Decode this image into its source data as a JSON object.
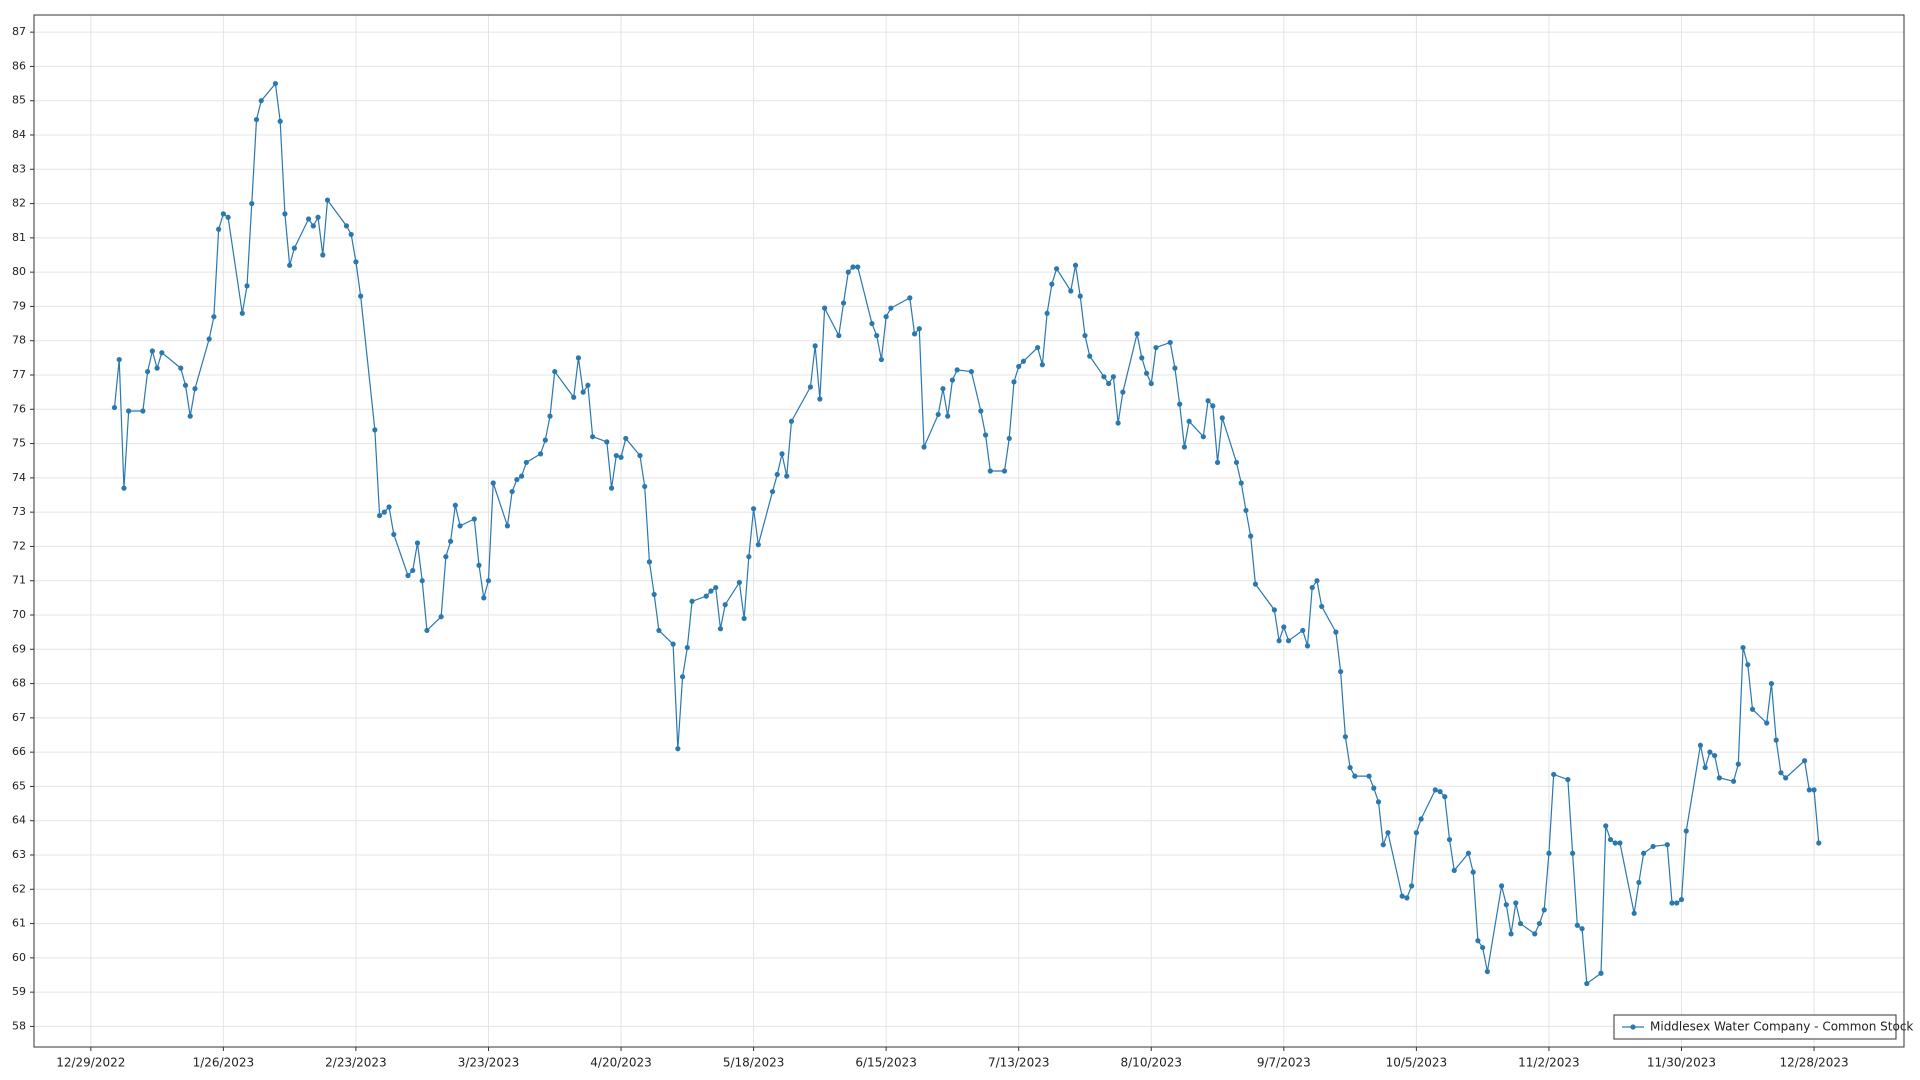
{
  "chart_data": {
    "type": "line",
    "legend": "bottom-right",
    "grid": true,
    "series": [
      {
        "name": "Middlesex Water Company - Common Stock",
        "color": "#2a78b0",
        "x": [
          "2023-01-03",
          "2023-01-04",
          "2023-01-05",
          "2023-01-06",
          "2023-01-09",
          "2023-01-10",
          "2023-01-11",
          "2023-01-12",
          "2023-01-13",
          "2023-01-17",
          "2023-01-18",
          "2023-01-19",
          "2023-01-20",
          "2023-01-23",
          "2023-01-24",
          "2023-01-25",
          "2023-01-26",
          "2023-01-27",
          "2023-01-30",
          "2023-01-31",
          "2023-02-01",
          "2023-02-02",
          "2023-02-03",
          "2023-02-06",
          "2023-02-07",
          "2023-02-08",
          "2023-02-09",
          "2023-02-10",
          "2023-02-13",
          "2023-02-14",
          "2023-02-15",
          "2023-02-16",
          "2023-02-17",
          "2023-02-21",
          "2023-02-22",
          "2023-02-23",
          "2023-02-24",
          "2023-02-27",
          "2023-02-28",
          "2023-03-01",
          "2023-03-02",
          "2023-03-03",
          "2023-03-06",
          "2023-03-07",
          "2023-03-08",
          "2023-03-09",
          "2023-03-10",
          "2023-03-13",
          "2023-03-14",
          "2023-03-15",
          "2023-03-16",
          "2023-03-17",
          "2023-03-20",
          "2023-03-21",
          "2023-03-22",
          "2023-03-23",
          "2023-03-24",
          "2023-03-27",
          "2023-03-28",
          "2023-03-29",
          "2023-03-30",
          "2023-03-31",
          "2023-04-03",
          "2023-04-04",
          "2023-04-05",
          "2023-04-06",
          "2023-04-10",
          "2023-04-11",
          "2023-04-12",
          "2023-04-13",
          "2023-04-14",
          "2023-04-17",
          "2023-04-18",
          "2023-04-19",
          "2023-04-20",
          "2023-04-21",
          "2023-04-24",
          "2023-04-25",
          "2023-04-26",
          "2023-04-27",
          "2023-04-28",
          "2023-05-01",
          "2023-05-02",
          "2023-05-03",
          "2023-05-04",
          "2023-05-05",
          "2023-05-08",
          "2023-05-09",
          "2023-05-10",
          "2023-05-11",
          "2023-05-12",
          "2023-05-15",
          "2023-05-16",
          "2023-05-17",
          "2023-05-18",
          "2023-05-19",
          "2023-05-22",
          "2023-05-23",
          "2023-05-24",
          "2023-05-25",
          "2023-05-26",
          "2023-05-30",
          "2023-05-31",
          "2023-06-01",
          "2023-06-02",
          "2023-06-05",
          "2023-06-06",
          "2023-06-07",
          "2023-06-08",
          "2023-06-09",
          "2023-06-12",
          "2023-06-13",
          "2023-06-14",
          "2023-06-15",
          "2023-06-16",
          "2023-06-20",
          "2023-06-21",
          "2023-06-22",
          "2023-06-23",
          "2023-06-26",
          "2023-06-27",
          "2023-06-28",
          "2023-06-29",
          "2023-06-30",
          "2023-07-03",
          "2023-07-05",
          "2023-07-06",
          "2023-07-07",
          "2023-07-10",
          "2023-07-11",
          "2023-07-12",
          "2023-07-13",
          "2023-07-14",
          "2023-07-17",
          "2023-07-18",
          "2023-07-19",
          "2023-07-20",
          "2023-07-21",
          "2023-07-24",
          "2023-07-25",
          "2023-07-26",
          "2023-07-27",
          "2023-07-28",
          "2023-07-31",
          "2023-08-01",
          "2023-08-02",
          "2023-08-03",
          "2023-08-04",
          "2023-08-07",
          "2023-08-08",
          "2023-08-09",
          "2023-08-10",
          "2023-08-11",
          "2023-08-14",
          "2023-08-15",
          "2023-08-16",
          "2023-08-17",
          "2023-08-18",
          "2023-08-21",
          "2023-08-22",
          "2023-08-23",
          "2023-08-24",
          "2023-08-25",
          "2023-08-28",
          "2023-08-29",
          "2023-08-30",
          "2023-08-31",
          "2023-09-01",
          "2023-09-05",
          "2023-09-06",
          "2023-09-07",
          "2023-09-08",
          "2023-09-11",
          "2023-09-12",
          "2023-09-13",
          "2023-09-14",
          "2023-09-15",
          "2023-09-18",
          "2023-09-19",
          "2023-09-20",
          "2023-09-21",
          "2023-09-22",
          "2023-09-25",
          "2023-09-26",
          "2023-09-27",
          "2023-09-28",
          "2023-09-29",
          "2023-10-02",
          "2023-10-03",
          "2023-10-04",
          "2023-10-05",
          "2023-10-06",
          "2023-10-09",
          "2023-10-10",
          "2023-10-11",
          "2023-10-12",
          "2023-10-13",
          "2023-10-16",
          "2023-10-17",
          "2023-10-18",
          "2023-10-19",
          "2023-10-20",
          "2023-10-23",
          "2023-10-24",
          "2023-10-25",
          "2023-10-26",
          "2023-10-27",
          "2023-10-30",
          "2023-10-31",
          "2023-11-01",
          "2023-11-02",
          "2023-11-03",
          "2023-11-06",
          "2023-11-07",
          "2023-11-08",
          "2023-11-09",
          "2023-11-10",
          "2023-11-13",
          "2023-11-14",
          "2023-11-15",
          "2023-11-16",
          "2023-11-17",
          "2023-11-20",
          "2023-11-21",
          "2023-11-22",
          "2023-11-24",
          "2023-11-27",
          "2023-11-28",
          "2023-11-29",
          "2023-11-30",
          "2023-12-01",
          "2023-12-04",
          "2023-12-05",
          "2023-12-06",
          "2023-12-07",
          "2023-12-08",
          "2023-12-11",
          "2023-12-12",
          "2023-12-13",
          "2023-12-14",
          "2023-12-15",
          "2023-12-18",
          "2023-12-19",
          "2023-12-20",
          "2023-12-21",
          "2023-12-22",
          "2023-12-26",
          "2023-12-27",
          "2023-12-28",
          "2023-12-29"
        ],
        "values": [
          76.05,
          77.45,
          73.7,
          75.95,
          75.95,
          77.1,
          77.7,
          77.2,
          77.65,
          77.2,
          76.7,
          75.8,
          76.6,
          78.05,
          78.7,
          81.25,
          81.7,
          81.6,
          78.8,
          79.6,
          82.0,
          84.45,
          85.0,
          85.5,
          84.4,
          81.7,
          80.2,
          80.7,
          81.55,
          81.35,
          81.6,
          80.5,
          82.1,
          81.35,
          81.1,
          80.3,
          79.3,
          75.4,
          72.9,
          73.0,
          73.15,
          72.35,
          71.15,
          71.3,
          72.1,
          71.0,
          69.55,
          69.95,
          71.7,
          72.15,
          73.2,
          72.6,
          72.8,
          71.45,
          70.5,
          71.0,
          73.85,
          72.6,
          73.6,
          73.95,
          74.05,
          74.45,
          74.7,
          75.1,
          75.8,
          77.1,
          76.35,
          77.5,
          76.5,
          76.7,
          75.2,
          75.05,
          73.7,
          74.65,
          74.6,
          75.15,
          74.65,
          73.75,
          71.55,
          70.6,
          69.55,
          69.15,
          66.1,
          68.2,
          69.05,
          70.4,
          70.55,
          70.7,
          70.8,
          69.6,
          70.3,
          70.95,
          69.9,
          71.7,
          73.1,
          72.05,
          73.6,
          74.1,
          74.7,
          74.05,
          75.65,
          76.65,
          77.85,
          76.3,
          78.95,
          78.15,
          79.1,
          80.0,
          80.15,
          80.15,
          78.5,
          78.15,
          77.45,
          78.7,
          78.95,
          79.25,
          78.2,
          78.35,
          74.9,
          75.85,
          76.6,
          75.8,
          76.85,
          77.15,
          77.1,
          75.95,
          75.25,
          74.2,
          74.2,
          75.15,
          76.8,
          77.25,
          77.4,
          77.8,
          77.3,
          78.8,
          79.65,
          80.1,
          79.45,
          80.2,
          79.3,
          78.15,
          77.55,
          76.95,
          76.75,
          76.95,
          75.6,
          76.5,
          78.2,
          77.5,
          77.05,
          76.75,
          77.8,
          77.95,
          77.2,
          76.15,
          74.9,
          75.65,
          75.2,
          76.25,
          76.1,
          74.45,
          75.75,
          74.45,
          73.85,
          73.05,
          72.3,
          70.9,
          70.15,
          69.25,
          69.65,
          69.25,
          69.55,
          69.1,
          70.8,
          71.0,
          70.25,
          69.5,
          68.35,
          66.45,
          65.55,
          65.3,
          65.3,
          64.95,
          64.55,
          63.3,
          63.65,
          61.8,
          61.75,
          62.1,
          63.65,
          64.05,
          64.9,
          64.85,
          64.7,
          63.45,
          62.55,
          63.05,
          62.5,
          60.5,
          60.3,
          59.6,
          62.1,
          61.55,
          60.7,
          61.6,
          61.0,
          60.7,
          61.0,
          61.4,
          63.05,
          65.35,
          65.2,
          63.05,
          60.95,
          60.85,
          59.25,
          59.55,
          63.85,
          63.45,
          63.35,
          63.35,
          61.3,
          62.2,
          63.05,
          63.25,
          63.3,
          61.6,
          61.6,
          61.7,
          63.7,
          66.2,
          65.55,
          66.0,
          65.9,
          65.25,
          65.15,
          65.65,
          69.05,
          68.55,
          67.25,
          66.85,
          68.0,
          66.35,
          65.4,
          65.25,
          65.75,
          64.9,
          64.9,
          63.35
        ]
      }
    ],
    "xlim": [
      "2022-12-17",
      "2024-01-16"
    ],
    "xticks": [
      {
        "value": "2022-12-29",
        "label": "12/29/2022"
      },
      {
        "value": "2023-01-26",
        "label": "1/26/2023"
      },
      {
        "value": "2023-02-23",
        "label": "2/23/2023"
      },
      {
        "value": "2023-03-23",
        "label": "3/23/2023"
      },
      {
        "value": "2023-04-20",
        "label": "4/20/2023"
      },
      {
        "value": "2023-05-18",
        "label": "5/18/2023"
      },
      {
        "value": "2023-06-15",
        "label": "6/15/2023"
      },
      {
        "value": "2023-07-13",
        "label": "7/13/2023"
      },
      {
        "value": "2023-08-10",
        "label": "8/10/2023"
      },
      {
        "value": "2023-09-07",
        "label": "9/7/2023"
      },
      {
        "value": "2023-10-05",
        "label": "10/5/2023"
      },
      {
        "value": "2023-11-02",
        "label": "11/2/2023"
      },
      {
        "value": "2023-11-30",
        "label": "11/30/2023"
      },
      {
        "value": "2023-12-28",
        "label": "12/28/2023"
      }
    ],
    "ylim": [
      57.4,
      87.5
    ],
    "yticks": [
      58,
      59,
      60,
      61,
      62,
      63,
      64,
      65,
      66,
      67,
      68,
      69,
      70,
      71,
      72,
      73,
      74,
      75,
      76,
      77,
      78,
      79,
      80,
      81,
      82,
      83,
      84,
      85,
      86,
      87
    ]
  }
}
